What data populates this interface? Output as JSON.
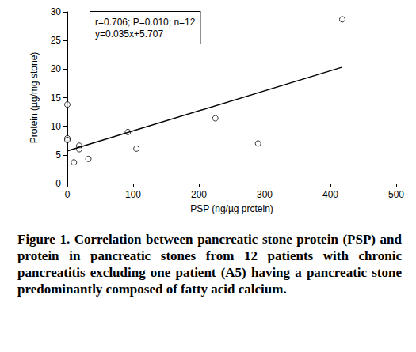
{
  "chart_data": {
    "type": "scatter",
    "x_label": "PSP (ng/µg prctein)",
    "y_label": "Protein (µg/mg stone)",
    "annotation": [
      "r=0.706; P=0.010; n=12",
      "y=0.035x+5.707"
    ],
    "series": [
      {
        "type": "scatter",
        "marker": "circle",
        "color": "#000000",
        "x": [
          0,
          0,
          0,
          10,
          18,
          18,
          32,
          92,
          105,
          225,
          290,
          418
        ],
        "values": [
          13.8,
          7.9,
          7.6,
          3.7,
          6.6,
          6.0,
          4.3,
          9.0,
          6.1,
          11.4,
          7.0,
          28.7
        ]
      },
      {
        "type": "line",
        "line_style": "solid",
        "color": "#000000",
        "x": [
          0,
          418
        ],
        "values": [
          5.707,
          20.34
        ]
      }
    ],
    "xlim": [
      0,
      500
    ],
    "xticks": [
      0,
      100,
      200,
      300,
      400,
      500
    ],
    "ylim": [
      0,
      30
    ],
    "yticks": [
      0,
      5,
      10,
      15,
      20,
      25,
      30
    ],
    "grid": false
  },
  "caption": {
    "label": "Figure 1.",
    "text": "Correlation between pancreatic stone protein (PSP) and protein in pancreatic stones from 12 patients with chronic pancreatitis excluding one patient (A5) having a pancreatic stone predominantly composed of fatty acid calcium."
  }
}
